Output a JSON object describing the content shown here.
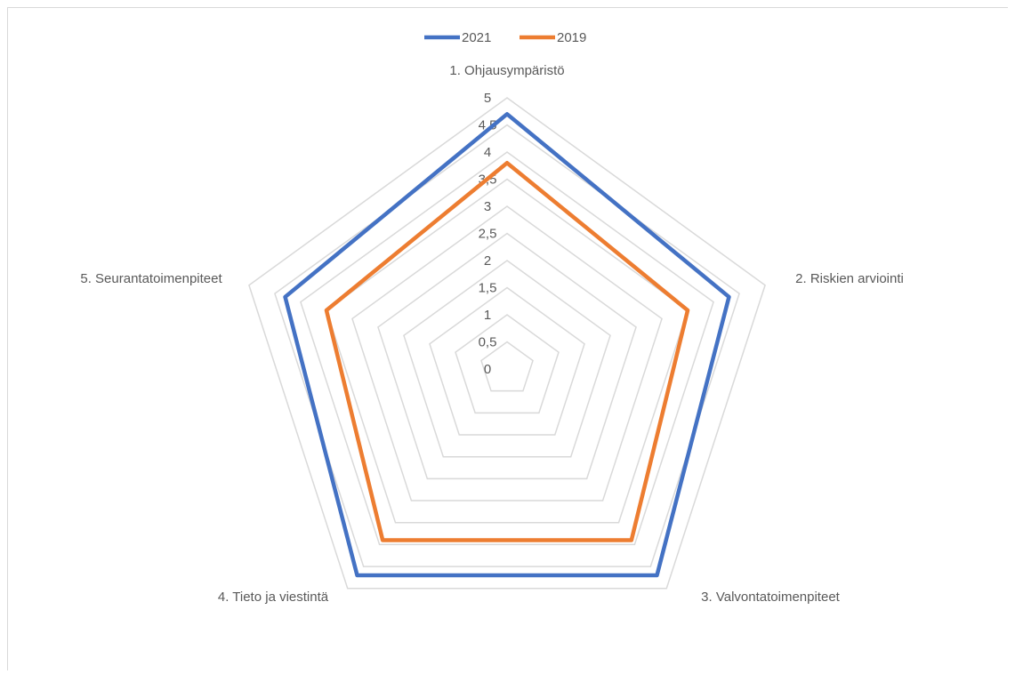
{
  "chart_data": {
    "type": "radar",
    "categories": [
      "1. Ohjausympäristö",
      "2. Riskien arviointi",
      "3. Valvontatoimenpiteet",
      "4. Tieto ja viestintä",
      "5. Seurantatoimenpiteet"
    ],
    "series": [
      {
        "name": "2021",
        "values": [
          4.7,
          4.3,
          4.7,
          4.7,
          4.3
        ]
      },
      {
        "name": "2019",
        "values": [
          3.8,
          3.5,
          3.9,
          3.9,
          3.5
        ]
      }
    ],
    "rlim": [
      0,
      5
    ],
    "ticks": [
      "0",
      "0,5",
      "1",
      "1,5",
      "2",
      "2,5",
      "3",
      "3,5",
      "4",
      "4,5",
      "5"
    ],
    "legend_position": "top",
    "colors": {
      "2021": "#4472c4",
      "2019": "#ed7d31",
      "grid": "#d9d9d9",
      "text": "#595959"
    }
  }
}
